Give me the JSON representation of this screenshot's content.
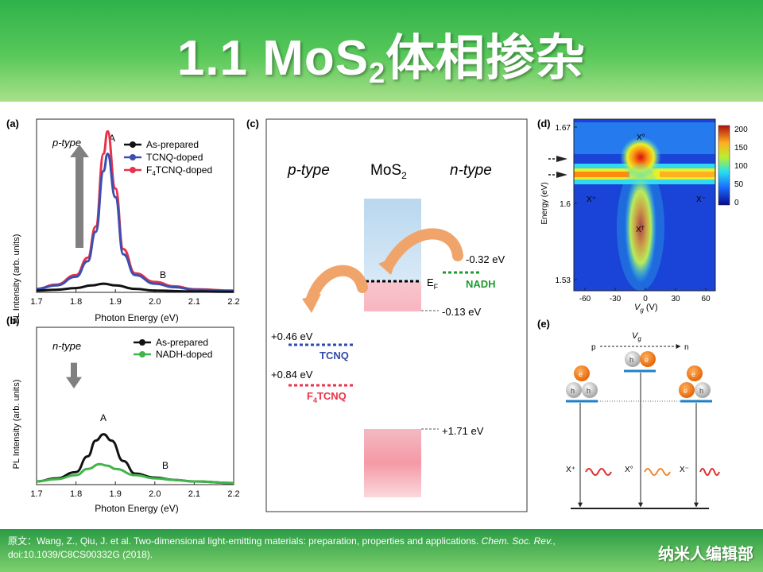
{
  "slide": {
    "title_prefix": "1.1  MoS",
    "title_sub": "2",
    "title_suffix": "体相掺杂"
  },
  "panel_a": {
    "label": "(a)",
    "type_label": "p-type",
    "ylabel": "PL Intensity (arb. units)",
    "xlabel": "Photon Energy (eV)",
    "peak_a": "A",
    "peak_b": "B",
    "legend": [
      "As-prepared",
      "TCNQ-doped",
      "F4TCNQ-doped"
    ],
    "legend_f4_prefix": "F",
    "legend_f4_sub": "4",
    "legend_f4_suffix": "TCNQ-doped",
    "x_ticks": [
      "1.7",
      "1.8",
      "1.9",
      "2.0",
      "2.1",
      "2.2"
    ]
  },
  "panel_b": {
    "label": "(b)",
    "type_label": "n-type",
    "ylabel": "PL Intensity (arb. units)",
    "xlabel": "Photon Energy (eV)",
    "peak_a": "A",
    "peak_b": "B",
    "legend": [
      "As-prepared",
      "NADH-doped"
    ],
    "x_ticks": [
      "1.7",
      "1.8",
      "1.9",
      "2.0",
      "2.1",
      "2.2"
    ]
  },
  "panel_c": {
    "label": "(c)",
    "p_type": "p-type",
    "mos2_prefix": "MoS",
    "mos2_sub": "2",
    "n_type": "n-type",
    "ef_prefix": "E",
    "ef_sub": "F",
    "nadh_level": "-0.32 eV",
    "nadh": "NADH",
    "ef_level": "-0.13 eV",
    "tcnq_level": "+0.46 eV",
    "tcnq": "TCNQ",
    "f4_level": "+0.84 eV",
    "f4_prefix": "F",
    "f4_sub": "4",
    "f4_suffix": "TCNQ",
    "vb_level": "+1.71 eV"
  },
  "panel_d": {
    "label": "(d)",
    "ylabel": "Energy (eV)",
    "y_ticks": [
      "1.67",
      "1.6",
      "1.53"
    ],
    "x_ticks": [
      "-60",
      "-30",
      "0",
      "30",
      "60"
    ],
    "xlabel_prefix": "V",
    "xlabel_sub": "g",
    "xlabel_suffix": " (V)",
    "colorbar_ticks": [
      "200",
      "150",
      "100",
      "50",
      "0"
    ],
    "x0": "X°",
    "xplus": "X⁺",
    "xminus": "X⁻",
    "xt": "Xᵀ"
  },
  "panel_e": {
    "label": "(e)",
    "vg_prefix": "V",
    "vg_sub": "g",
    "p": "p",
    "n": "n",
    "e": "e",
    "h": "h",
    "xplus": "X⁺",
    "x0": "X°",
    "xminus": "X⁻"
  },
  "footer": {
    "cite_prefix": "原文：Wang, Z., Qiu, J. et al. Two-dimensional light-emitting materials: preparation, properties and applications. ",
    "cite_journal": "Chem. Soc. Rev.",
    "cite_suffix": ", doi:10.1039/C8CS00332G  (2018).",
    "brand": "纳米人编辑部"
  },
  "colors": {
    "header_green": "#2fb24a",
    "black_curve": "#111111",
    "blue_curve": "#3b4fb0",
    "red_curve": "#e8324a",
    "green_curve": "#3fb549",
    "tcnq": "#2f4aa8",
    "f4tcnq": "#e8324a",
    "nadh": "#1c9b2f",
    "arrow_orange": "#f0a46a"
  },
  "chart_data": [
    {
      "type": "line",
      "panel": "a",
      "xlabel": "Photon Energy (eV)",
      "ylabel": "PL Intensity (arb. units)",
      "xlim": [
        1.7,
        2.2
      ],
      "ylim": [
        0,
        1.0
      ],
      "series": [
        {
          "name": "As-prepared",
          "x": [
            1.7,
            1.75,
            1.8,
            1.84,
            1.87,
            1.9,
            1.95,
            2.0,
            2.1,
            2.2
          ],
          "values": [
            0.01,
            0.015,
            0.025,
            0.04,
            0.05,
            0.04,
            0.02,
            0.01,
            0.005,
            0.003
          ]
        },
        {
          "name": "TCNQ-doped",
          "x": [
            1.7,
            1.75,
            1.8,
            1.83,
            1.85,
            1.87,
            1.88,
            1.9,
            1.92,
            1.95,
            2.0,
            2.05,
            2.1,
            2.2
          ],
          "values": [
            0.02,
            0.04,
            0.09,
            0.18,
            0.35,
            0.7,
            0.8,
            0.55,
            0.22,
            0.1,
            0.05,
            0.03,
            0.015,
            0.008
          ]
        },
        {
          "name": "F4TCNQ-doped",
          "x": [
            1.7,
            1.75,
            1.8,
            1.83,
            1.85,
            1.87,
            1.88,
            1.9,
            1.92,
            1.95,
            2.0,
            2.05,
            2.1,
            2.2
          ],
          "values": [
            0.02,
            0.045,
            0.1,
            0.2,
            0.38,
            0.8,
            0.93,
            0.6,
            0.25,
            0.11,
            0.06,
            0.035,
            0.018,
            0.01
          ]
        }
      ]
    },
    {
      "type": "line",
      "panel": "b",
      "xlabel": "Photon Energy (eV)",
      "ylabel": "PL Intensity (arb. units)",
      "xlim": [
        1.7,
        2.2
      ],
      "ylim": [
        0,
        1.0
      ],
      "series": [
        {
          "name": "As-prepared",
          "x": [
            1.7,
            1.75,
            1.8,
            1.83,
            1.85,
            1.87,
            1.89,
            1.92,
            1.95,
            2.0,
            2.05,
            2.1,
            2.2
          ],
          "values": [
            0.02,
            0.04,
            0.08,
            0.18,
            0.28,
            0.32,
            0.28,
            0.15,
            0.07,
            0.045,
            0.03,
            0.02,
            0.01
          ]
        },
        {
          "name": "NADH-doped",
          "x": [
            1.7,
            1.75,
            1.8,
            1.83,
            1.86,
            1.88,
            1.9,
            1.95,
            2.0,
            2.05,
            2.1,
            2.2
          ],
          "values": [
            0.02,
            0.035,
            0.06,
            0.1,
            0.13,
            0.12,
            0.1,
            0.06,
            0.04,
            0.03,
            0.02,
            0.01
          ]
        }
      ]
    }
  ]
}
